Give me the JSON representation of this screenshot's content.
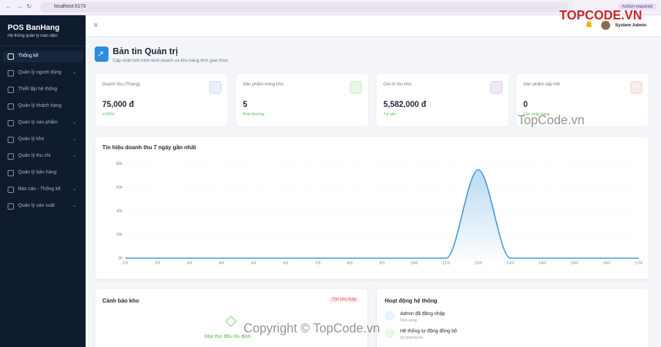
{
  "browser": {
    "url": "localhost:5173",
    "action": "Action required"
  },
  "watermarks": [
    "TOPCODE.VN",
    "TopCode.vn",
    "Copyright © TopCode.vn"
  ],
  "sidebar": {
    "brand": "POS BanHang",
    "tagline": "Hệ thống quản lý toàn diện",
    "active": 0,
    "menu": [
      {
        "label": "Thống kê",
        "expandable": false
      },
      {
        "label": "Quản lý người dùng",
        "expandable": true
      },
      {
        "label": "Thiết lập hệ thống",
        "expandable": false
      },
      {
        "label": "Quản lý khách hàng",
        "expandable": false
      },
      {
        "label": "Quản lý sản phẩm",
        "expandable": true
      },
      {
        "label": "Quản lý kho",
        "expandable": true
      },
      {
        "label": "Quản lý thu chi",
        "expandable": true
      },
      {
        "label": "Quản lý bán hàng",
        "expandable": false
      },
      {
        "label": "Báo cáo - Thống kê",
        "expandable": true
      },
      {
        "label": "Quản lý sản xuất",
        "expandable": true
      }
    ]
  },
  "header": {
    "user": "System Admin"
  },
  "page": {
    "title": "Bản tin Quản trị",
    "subtitle": "Cập nhật tình hình kinh doanh và kho hàng thời gian thực"
  },
  "cards": [
    {
      "label": "Doanh thu (Tháng)",
      "value": "75,000 đ",
      "note": "+100%"
    },
    {
      "label": "Sản phẩm trong kho",
      "value": "5",
      "note": "Bình thường"
    },
    {
      "label": "Giá trị tồn kho",
      "value": "5,582,000 đ",
      "note": "Tài sản"
    },
    {
      "label": "Sản phẩm sắp hết",
      "value": "0",
      "note": "Cần nhập hàng"
    }
  ],
  "chart_data": {
    "type": "line",
    "title": "Tín hiệu doanh thu 7 ngày gần nhất",
    "color": "#3a93d6",
    "categories": [
      "1/3",
      "2/3",
      "3/3",
      "4/3",
      "5/3",
      "6/3",
      "7/3",
      "8/3",
      "9/3",
      "10/3",
      "11/3",
      "12/3",
      "13/3",
      "14/3",
      "15/3",
      "16/3",
      "17/3"
    ],
    "values": [
      0,
      0,
      0,
      0,
      0,
      0,
      0,
      0,
      0,
      0,
      0,
      75000,
      0,
      0,
      0,
      0,
      0
    ],
    "ylim": [
      0,
      80000
    ],
    "yticks": [
      {
        "value": 0,
        "label": "0k"
      },
      {
        "value": 20000,
        "label": "20k"
      },
      {
        "value": 40000,
        "label": "40k"
      },
      {
        "value": 60000,
        "label": "60k"
      },
      {
        "value": 80000,
        "label": "80k"
      }
    ],
    "grid": true
  },
  "stock_alert": {
    "title": "Cảnh báo kho",
    "badge": "Tồn kho thấp",
    "message": "Mọi thứ đều ổn định"
  },
  "activity": {
    "title": "Hoạt động hệ thống",
    "items": [
      {
        "text": "Admin đã đăng nhập",
        "time": "Vừa xong"
      },
      {
        "text": "Hệ thống tự động đồng bộ",
        "time": "10 phút trước"
      }
    ]
  }
}
